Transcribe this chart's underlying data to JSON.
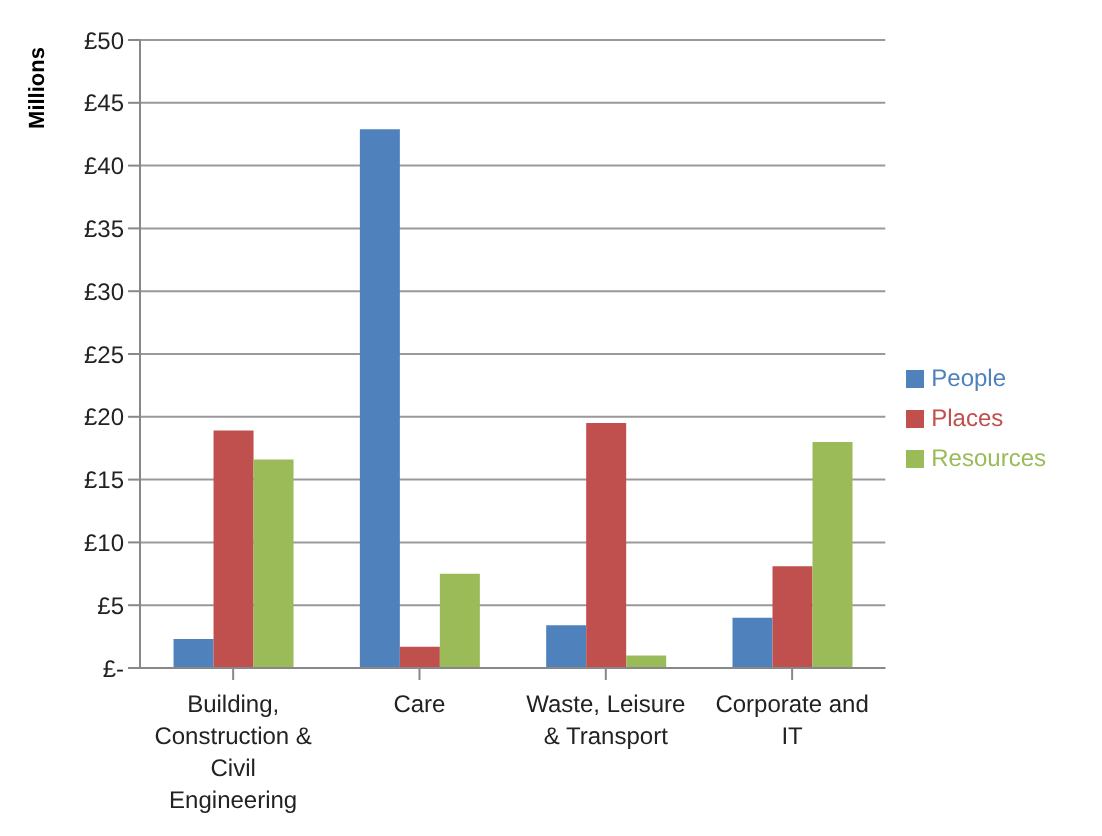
{
  "chart_data": {
    "type": "bar",
    "ylabel": "Millions",
    "categories": [
      "Building, Construction & Civil Engineering",
      "Care",
      "Waste, Leisure & Transport",
      "Corporate and IT"
    ],
    "series": [
      {
        "name": "People",
        "color": "#4f81bd",
        "values": [
          2.3,
          42.9,
          3.4,
          4.0
        ]
      },
      {
        "name": "Places",
        "color": "#c0504d",
        "values": [
          18.9,
          1.7,
          19.5,
          8.1
        ]
      },
      {
        "name": "Resources",
        "color": "#9bbb59",
        "values": [
          16.6,
          7.5,
          1.0,
          18.0
        ]
      }
    ],
    "ylim": [
      0,
      50
    ],
    "yticks": [
      {
        "value": 0,
        "label": "£-"
      },
      {
        "value": 5,
        "label": "£5"
      },
      {
        "value": 10,
        "label": "£10"
      },
      {
        "value": 15,
        "label": "£15"
      },
      {
        "value": 20,
        "label": "£20"
      },
      {
        "value": 25,
        "label": "£25"
      },
      {
        "value": 30,
        "label": "£30"
      },
      {
        "value": 35,
        "label": "£35"
      },
      {
        "value": 40,
        "label": "£40"
      },
      {
        "value": 45,
        "label": "£45"
      },
      {
        "value": 50,
        "label": "£50"
      }
    ],
    "grid": "y",
    "legend": "right"
  }
}
